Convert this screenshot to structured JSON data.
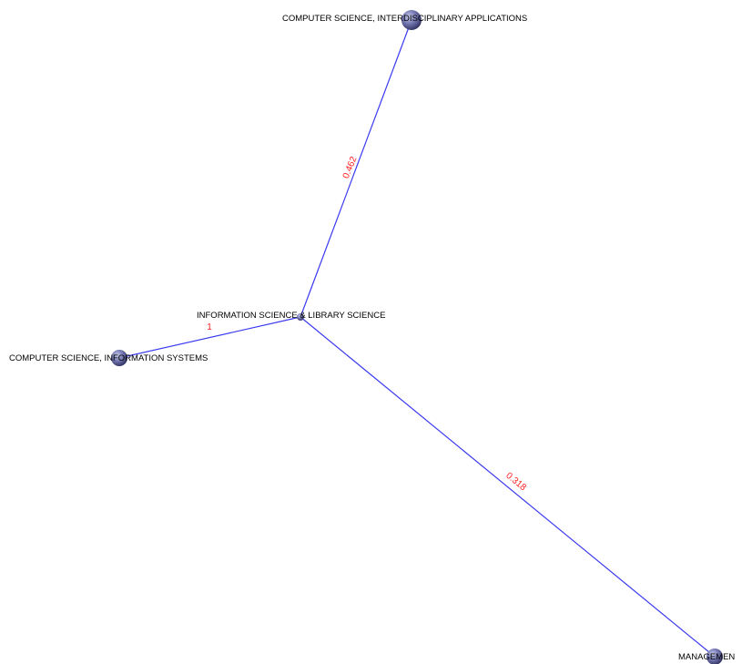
{
  "colors": {
    "edge": "#3a3aef",
    "edge_label": "#ff2020",
    "node_light": "#c9cbe8",
    "node_mid": "#7a7eb8",
    "node_dark": "#2e2f5e",
    "label": "#000000"
  },
  "network": {
    "nodes": [
      {
        "id": "n1",
        "label": "COMPUTER SCIENCE, INTERDISCIPLINARY APPLICATIONS"
      },
      {
        "id": "n2",
        "label": "INFORMATION SCIENCE & LIBRARY SCIENCE"
      },
      {
        "id": "n3",
        "label": "COMPUTER SCIENCE, INFORMATION SYSTEMS"
      },
      {
        "id": "n4",
        "label": "MANAGEMEN"
      }
    ],
    "edges": [
      {
        "source": "n2",
        "target": "n1",
        "weight": "0.462"
      },
      {
        "source": "n2",
        "target": "n3",
        "weight": "1"
      },
      {
        "source": "n2",
        "target": "n4",
        "weight": "0.318"
      }
    ]
  }
}
